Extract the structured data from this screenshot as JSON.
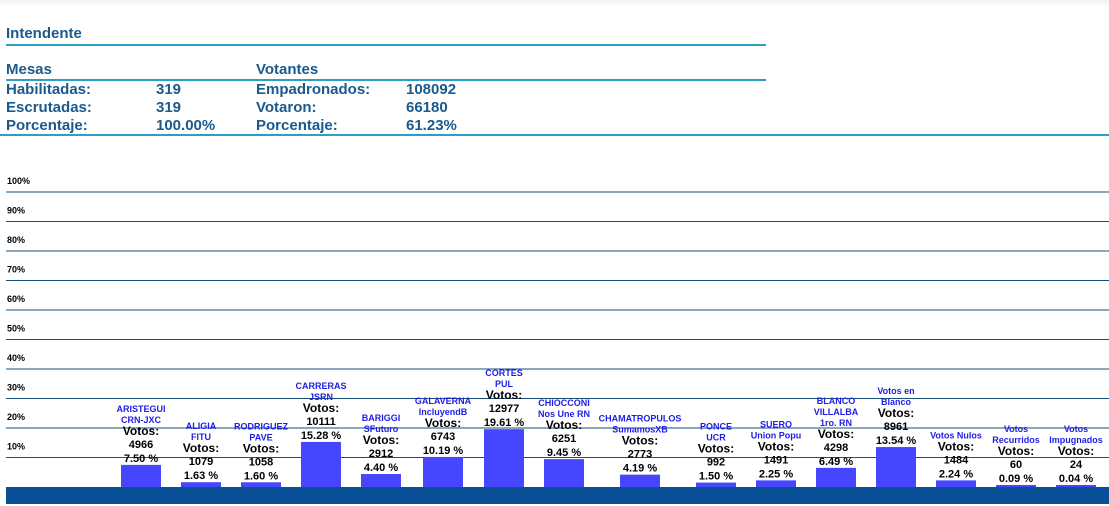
{
  "title": "Intendente",
  "mesas": {
    "heading": "Mesas",
    "rows": [
      {
        "label": "Habilitadas:",
        "value": "319"
      },
      {
        "label": "Escrutadas:",
        "value": "319"
      },
      {
        "label": "Porcentaje:",
        "value": "100.00%"
      }
    ]
  },
  "votantes": {
    "heading": "Votantes",
    "rows": [
      {
        "label": "Empadronados:",
        "value": "108092"
      },
      {
        "label": "Votaron:",
        "value": "66180"
      },
      {
        "label": "Porcentaje:",
        "value": "61.23%"
      }
    ]
  },
  "colors": {
    "bar": "#4646ff",
    "axis": "#0a5096",
    "grid": "#1a4f7a",
    "heading": "#1a5a8c",
    "label": "#1e1ee6"
  },
  "chart_data": {
    "type": "bar",
    "votes_label": "Votos:",
    "ylim": [
      0,
      100
    ],
    "yticks": [
      "10%",
      "20%",
      "30%",
      "40%",
      "50%",
      "60%",
      "70%",
      "80%",
      "90%",
      "100%"
    ],
    "categories": [
      {
        "name": [
          "ARISTEGUI",
          "CRN-JXC"
        ],
        "votes": "4966",
        "percent": 7.5,
        "percent_label": "7.50 %"
      },
      {
        "name": [
          "ALIGIA",
          "FITU"
        ],
        "votes": "1079",
        "percent": 1.63,
        "percent_label": "1.63 %"
      },
      {
        "name": [
          "RODRIGUEZ",
          "PAVE"
        ],
        "votes": "1058",
        "percent": 1.6,
        "percent_label": "1.60 %"
      },
      {
        "name": [
          "CARRERAS",
          "JSRN"
        ],
        "votes": "10111",
        "percent": 15.28,
        "percent_label": "15.28 %"
      },
      {
        "name": [
          "BARIGGI",
          "SFuturo"
        ],
        "votes": "2912",
        "percent": 4.4,
        "percent_label": "4.40 %"
      },
      {
        "name": [
          "GALAVERNA",
          "IncluyendB"
        ],
        "votes": "6743",
        "percent": 10.19,
        "percent_label": "10.19 %"
      },
      {
        "name": [
          "CORTES",
          "PUL"
        ],
        "votes": "12977",
        "percent": 19.61,
        "percent_label": "19.61 %"
      },
      {
        "name": [
          "CHIOCCONI",
          "Nos Une RN"
        ],
        "votes": "6251",
        "percent": 9.45,
        "percent_label": "9.45 %"
      },
      {
        "name": [
          "CHAMATROPULOS",
          "SumamosXB"
        ],
        "votes": "2773",
        "percent": 4.19,
        "percent_label": "4.19 %"
      },
      {
        "name": [
          "PONCE",
          "UCR"
        ],
        "votes": "992",
        "percent": 1.5,
        "percent_label": "1.50 %"
      },
      {
        "name": [
          "SUERO",
          "Union Popu"
        ],
        "votes": "1491",
        "percent": 2.25,
        "percent_label": "2.25 %"
      },
      {
        "name": [
          "BLANCO",
          "VILLALBA",
          "1ro. RN"
        ],
        "votes": "4298",
        "percent": 6.49,
        "percent_label": "6.49 %"
      },
      {
        "name": [
          "Votos en",
          "Blanco"
        ],
        "votes": "8961",
        "percent": 13.54,
        "percent_label": "13.54 %"
      },
      {
        "name": [
          "Votos Nulos"
        ],
        "votes": "1484",
        "percent": 2.24,
        "percent_label": "2.24 %"
      },
      {
        "name": [
          "Votos",
          "Recurridos"
        ],
        "votes": "60",
        "percent": 0.09,
        "percent_label": "0.09 %"
      },
      {
        "name": [
          "Votos",
          "Impugnados"
        ],
        "votes": "24",
        "percent": 0.04,
        "percent_label": "0.04 %"
      }
    ]
  }
}
